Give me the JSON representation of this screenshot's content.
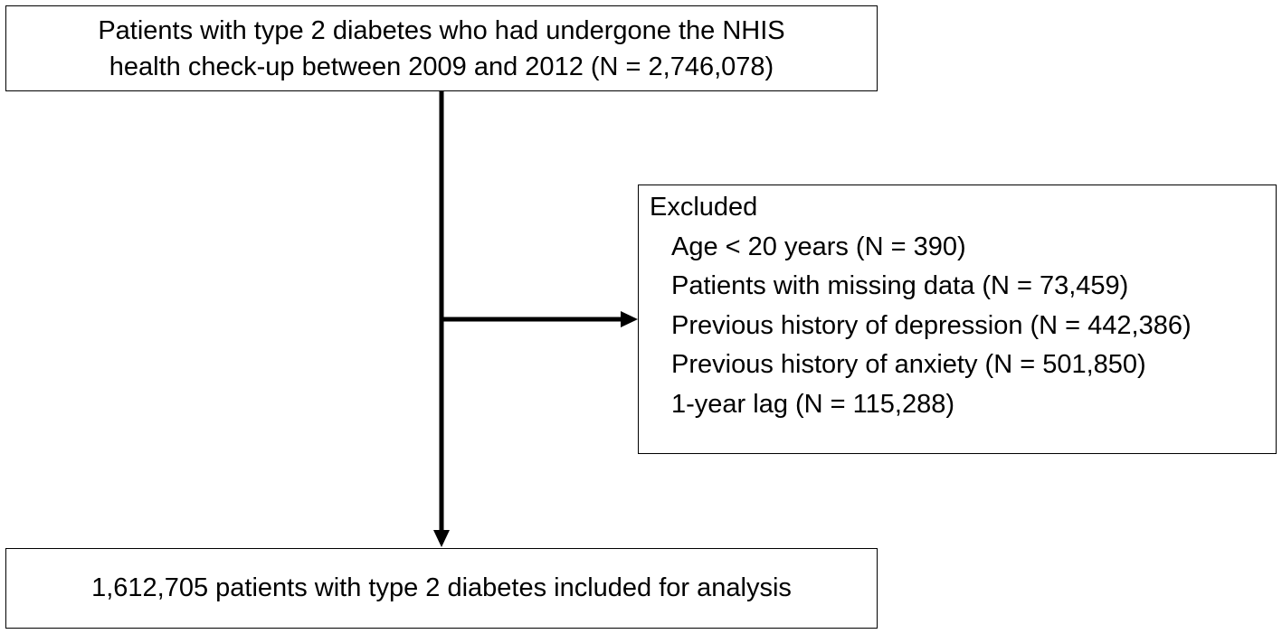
{
  "top_box": {
    "line1": "Patients with type 2 diabetes who had undergone the NHIS",
    "line2": "health check-up between 2009 and 2012 (N = 2,746,078)"
  },
  "exclusion_box": {
    "heading": "Excluded",
    "items": [
      "Age < 20 years (N = 390)",
      "Patients with missing data (N = 73,459)",
      "Previous history of depression (N = 442,386)",
      "Previous history of anxiety (N = 501,850)",
      "1-year lag (N = 115,288)"
    ]
  },
  "bottom_box": {
    "text": "1,612,705 patients with type 2 diabetes included for analysis"
  }
}
